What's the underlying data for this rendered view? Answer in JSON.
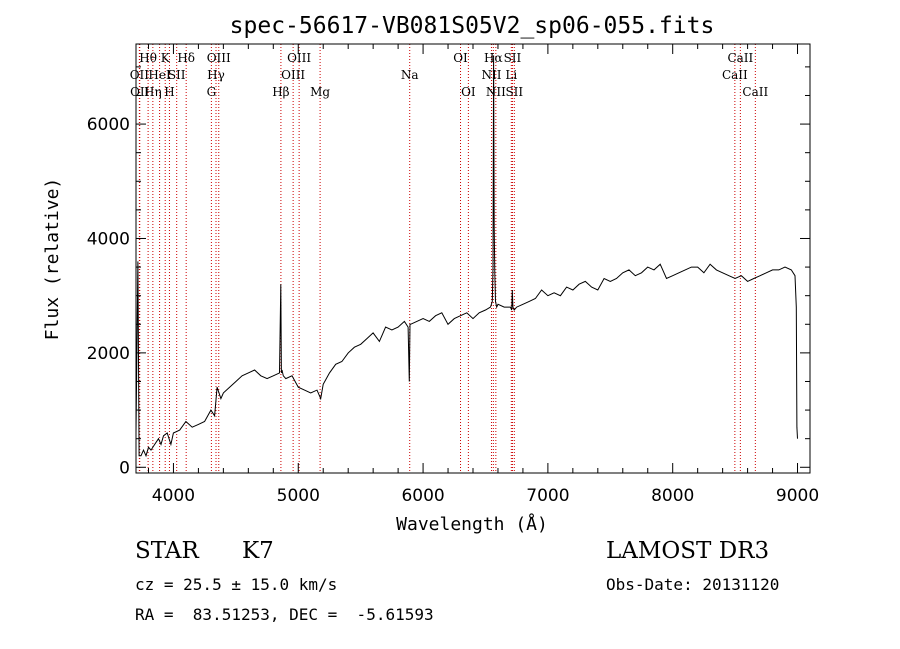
{
  "chart_data": {
    "type": "line",
    "title": "spec-56617-VB081S05V2_sp06-055.fits",
    "xlabel": "Wavelength (Å)",
    "ylabel": "Flux (relative)",
    "xlim": [
      3700,
      9100
    ],
    "ylim": [
      -100,
      7400
    ],
    "xticks": [
      4000,
      5000,
      6000,
      7000,
      8000,
      9000
    ],
    "xtick_labels": [
      "4000",
      "5000",
      "6000",
      "7000",
      "8000",
      "9000"
    ],
    "yticks": [
      0,
      2000,
      4000,
      6000
    ],
    "ytick_labels": [
      "0",
      "2000",
      "4000",
      "6000"
    ],
    "series": [
      {
        "name": "spectrum",
        "x": [
          3700,
          3715,
          3725,
          3740,
          3760,
          3780,
          3800,
          3820,
          3850,
          3880,
          3900,
          3920,
          3950,
          3980,
          4000,
          4050,
          4100,
          4150,
          4200,
          4250,
          4300,
          4330,
          4350,
          4380,
          4400,
          4450,
          4500,
          4550,
          4600,
          4650,
          4700,
          4750,
          4800,
          4850,
          4860,
          4865,
          4870,
          4880,
          4900,
          4950,
          5000,
          5050,
          5100,
          5150,
          5180,
          5200,
          5250,
          5300,
          5350,
          5400,
          5450,
          5500,
          5550,
          5600,
          5650,
          5700,
          5750,
          5800,
          5850,
          5880,
          5890,
          5895,
          5900,
          5950,
          6000,
          6050,
          6100,
          6150,
          6200,
          6250,
          6300,
          6350,
          6400,
          6450,
          6500,
          6540,
          6555,
          6560,
          6565,
          6570,
          6575,
          6580,
          6590,
          6600,
          6650,
          6700,
          6710,
          6715,
          6720,
          6730,
          6750,
          6800,
          6850,
          6900,
          6950,
          7000,
          7050,
          7100,
          7150,
          7200,
          7250,
          7300,
          7350,
          7400,
          7450,
          7500,
          7550,
          7600,
          7650,
          7700,
          7750,
          7800,
          7850,
          7900,
          7950,
          8000,
          8050,
          8100,
          8150,
          8200,
          8250,
          8300,
          8350,
          8400,
          8450,
          8500,
          8550,
          8600,
          8650,
          8700,
          8750,
          8800,
          8850,
          8900,
          8950,
          8980,
          8990,
          8995,
          9000
        ],
        "y": [
          600,
          3600,
          200,
          200,
          300,
          200,
          350,
          300,
          400,
          500,
          400,
          550,
          600,
          400,
          600,
          650,
          800,
          700,
          750,
          800,
          1000,
          900,
          1400,
          1200,
          1300,
          1400,
          1500,
          1600,
          1650,
          1700,
          1600,
          1550,
          1600,
          1650,
          3200,
          1650,
          1700,
          1600,
          1550,
          1600,
          1400,
          1350,
          1300,
          1350,
          1200,
          1450,
          1650,
          1800,
          1850,
          2000,
          2100,
          2150,
          2250,
          2350,
          2200,
          2450,
          2400,
          2450,
          2550,
          2450,
          1500,
          2500,
          2500,
          2550,
          2600,
          2550,
          2650,
          2700,
          2500,
          2600,
          2650,
          2700,
          2600,
          2700,
          2750,
          2800,
          2900,
          3500,
          7200,
          4200,
          3400,
          2900,
          2800,
          2850,
          2800,
          2800,
          2750,
          3100,
          2800,
          2750,
          2800,
          2850,
          2900,
          2950,
          3100,
          3000,
          3050,
          3000,
          3150,
          3100,
          3200,
          3250,
          3150,
          3100,
          3300,
          3250,
          3300,
          3400,
          3450,
          3350,
          3400,
          3500,
          3450,
          3550,
          3300,
          3350,
          3400,
          3450,
          3500,
          3500,
          3400,
          3550,
          3450,
          3400,
          3350,
          3300,
          3350,
          3250,
          3300,
          3350,
          3400,
          3450,
          3450,
          3500,
          3450,
          3350,
          2800,
          700,
          500
        ]
      }
    ],
    "spectral_lines": [
      {
        "x": 3727,
        "label": "OII",
        "row": 1
      },
      {
        "x": 3730,
        "label": "OII",
        "row": 2
      },
      {
        "x": 3797,
        "label": "Hθ",
        "row": 0
      },
      {
        "x": 3835,
        "label": "Hη",
        "row": 2
      },
      {
        "x": 3889,
        "label": "HeI",
        "row": 1
      },
      {
        "x": 3934,
        "label": "K",
        "row": 0
      },
      {
        "x": 3968,
        "label": "H",
        "row": 2
      },
      {
        "x": 4026,
        "label": "SII",
        "row": 1
      },
      {
        "x": 4102,
        "label": "Hδ",
        "row": 0
      },
      {
        "x": 4304,
        "label": "G",
        "row": 2
      },
      {
        "x": 4341,
        "label": "Hγ",
        "row": 1
      },
      {
        "x": 4363,
        "label": "OIII",
        "row": 0
      },
      {
        "x": 4861,
        "label": "Hβ",
        "row": 2
      },
      {
        "x": 4959,
        "label": "OIII",
        "row": 1
      },
      {
        "x": 5007,
        "label": "OIII",
        "row": 0
      },
      {
        "x": 5175,
        "label": "Mg",
        "row": 2
      },
      {
        "x": 5893,
        "label": "Na",
        "row": 1
      },
      {
        "x": 6300,
        "label": "OI",
        "row": 0
      },
      {
        "x": 6363,
        "label": "OI",
        "row": 2
      },
      {
        "x": 6548,
        "label": "NII",
        "row": 1
      },
      {
        "x": 6563,
        "label": "Hα",
        "row": 0
      },
      {
        "x": 6583,
        "label": "NII",
        "row": 2
      },
      {
        "x": 6707,
        "label": "Li",
        "row": 1
      },
      {
        "x": 6716,
        "label": "SII",
        "row": 0
      },
      {
        "x": 6731,
        "label": "SII",
        "row": 2
      },
      {
        "x": 8498,
        "label": "CaII",
        "row": 1
      },
      {
        "x": 8542,
        "label": "CaII",
        "row": 0
      },
      {
        "x": 8662,
        "label": "CaII",
        "row": 2
      }
    ],
    "line_color": "#cc0000",
    "spectrum_color": "#000000"
  },
  "info": {
    "class": "STAR",
    "subclass": "K7",
    "survey": "LAMOST DR3",
    "redshift": "cz = 25.5 ± 15.0 km/s",
    "obs_date": "Obs-Date: 20131120",
    "coords": "RA =  83.51253, DEC =  -5.61593"
  }
}
